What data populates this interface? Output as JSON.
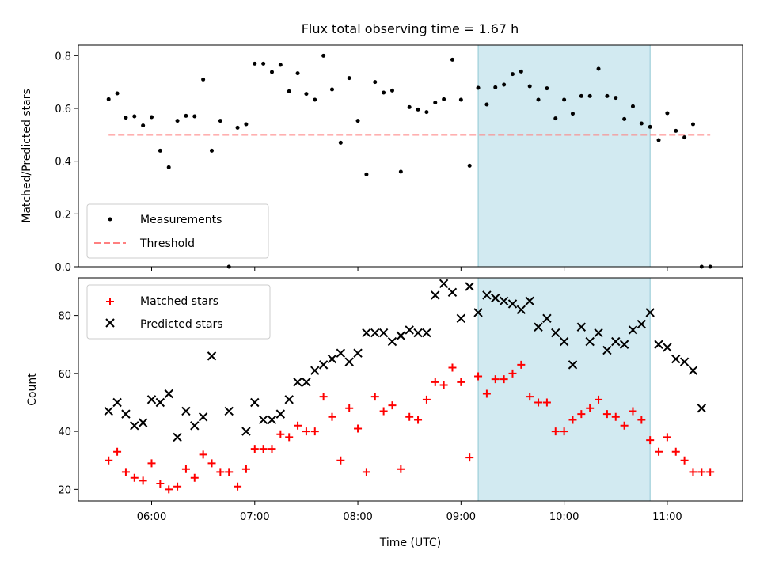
{
  "chart_data": {
    "type": "scatter",
    "title": "Flux total observing time = 1.67 h",
    "xlabel": "Time (UTC)",
    "xlim_hours": [
      5.29,
      11.73
    ],
    "x_ticks": [
      {
        "v": 6,
        "label": "06:00"
      },
      {
        "v": 7,
        "label": "07:00"
      },
      {
        "v": 8,
        "label": "08:00"
      },
      {
        "v": 9,
        "label": "09:00"
      },
      {
        "v": 10,
        "label": "10:00"
      },
      {
        "v": 11,
        "label": "11:00"
      }
    ],
    "highlight_span": {
      "start": "09:10",
      "end": "10:50",
      "color": "#add8e6"
    },
    "top": {
      "ylabel": "Matched/Predicted stars",
      "ylim": [
        0,
        0.84
      ],
      "y_ticks": [
        {
          "v": 0,
          "label": "0.0"
        },
        {
          "v": 0.2,
          "label": "0.2"
        },
        {
          "v": 0.4,
          "label": "0.4"
        },
        {
          "v": 0.6,
          "label": "0.6"
        },
        {
          "v": 0.8,
          "label": "0.8"
        }
      ],
      "threshold": {
        "value": 0.5,
        "x_start": "05:35",
        "x_end": "11:25",
        "color": "#ff8080"
      },
      "legend": {
        "measurements": "Measurements",
        "threshold": "Threshold",
        "location": "lower-left"
      },
      "series": [
        {
          "name": "Measurements",
          "color": "#000000",
          "points": [
            [
              "05:35",
              0.635
            ],
            [
              "05:40",
              0.657
            ],
            [
              "05:45",
              0.565
            ],
            [
              "05:50",
              0.57
            ],
            [
              "05:55",
              0.535
            ],
            [
              "06:00",
              0.567
            ],
            [
              "06:05",
              0.44
            ],
            [
              "06:10",
              0.377
            ],
            [
              "06:15",
              0.553
            ],
            [
              "06:20",
              0.572
            ],
            [
              "06:25",
              0.57
            ],
            [
              "06:30",
              0.71
            ],
            [
              "06:35",
              0.44
            ],
            [
              "06:40",
              0.553
            ],
            [
              "06:45",
              0.0
            ],
            [
              "06:50",
              0.527
            ],
            [
              "06:55",
              0.54
            ],
            [
              "07:00",
              0.77
            ],
            [
              "07:05",
              0.77
            ],
            [
              "07:10",
              0.738
            ],
            [
              "07:15",
              0.765
            ],
            [
              "07:20",
              0.665
            ],
            [
              "07:25",
              0.733
            ],
            [
              "07:30",
              0.655
            ],
            [
              "07:35",
              0.633
            ],
            [
              "07:40",
              0.8
            ],
            [
              "07:45",
              0.672
            ],
            [
              "07:50",
              0.47
            ],
            [
              "07:55",
              0.715
            ],
            [
              "08:00",
              0.553
            ],
            [
              "08:05",
              0.35
            ],
            [
              "08:10",
              0.7
            ],
            [
              "08:15",
              0.66
            ],
            [
              "08:20",
              0.668
            ],
            [
              "08:25",
              0.36
            ],
            [
              "08:30",
              0.605
            ],
            [
              "08:35",
              0.596
            ],
            [
              "08:40",
              0.586
            ],
            [
              "08:45",
              0.622
            ],
            [
              "08:50",
              0.635
            ],
            [
              "08:55",
              0.785
            ],
            [
              "09:00",
              0.633
            ],
            [
              "09:05",
              0.383
            ],
            [
              "09:10",
              0.678
            ],
            [
              "09:15",
              0.615
            ],
            [
              "09:20",
              0.68
            ],
            [
              "09:25",
              0.69
            ],
            [
              "09:30",
              0.73
            ],
            [
              "09:35",
              0.74
            ],
            [
              "09:40",
              0.684
            ],
            [
              "09:45",
              0.633
            ],
            [
              "09:50",
              0.676
            ],
            [
              "09:55",
              0.562
            ],
            [
              "10:00",
              0.633
            ],
            [
              "10:05",
              0.58
            ],
            [
              "10:10",
              0.647
            ],
            [
              "10:15",
              0.647
            ],
            [
              "10:20",
              0.75
            ],
            [
              "10:25",
              0.647
            ],
            [
              "10:30",
              0.64
            ],
            [
              "10:35",
              0.56
            ],
            [
              "10:40",
              0.608
            ],
            [
              "10:45",
              0.543
            ],
            [
              "10:50",
              0.53
            ],
            [
              "10:55",
              0.48
            ],
            [
              "11:00",
              0.582
            ],
            [
              "11:05",
              0.515
            ],
            [
              "11:10",
              0.49
            ],
            [
              "11:15",
              0.54
            ],
            [
              "11:20",
              0.0
            ],
            [
              "11:25",
              0.0
            ]
          ]
        }
      ]
    },
    "bottom": {
      "ylabel": "Count",
      "ylim": [
        16,
        93
      ],
      "y_ticks": [
        {
          "v": 20,
          "label": "20"
        },
        {
          "v": 40,
          "label": "40"
        },
        {
          "v": 60,
          "label": "60"
        },
        {
          "v": 80,
          "label": "80"
        }
      ],
      "legend": {
        "matched": "Matched stars",
        "predicted": "Predicted stars",
        "location": "upper-left"
      },
      "series": [
        {
          "name": "Matched stars",
          "marker": "+",
          "color": "#ff0000",
          "points": [
            [
              "05:35",
              30
            ],
            [
              "05:40",
              33
            ],
            [
              "05:45",
              26
            ],
            [
              "05:50",
              24
            ],
            [
              "05:55",
              23
            ],
            [
              "06:00",
              29
            ],
            [
              "06:05",
              22
            ],
            [
              "06:10",
              20
            ],
            [
              "06:15",
              21
            ],
            [
              "06:20",
              27
            ],
            [
              "06:25",
              24
            ],
            [
              "06:30",
              32
            ],
            [
              "06:35",
              29
            ],
            [
              "06:40",
              26
            ],
            [
              "06:45",
              26
            ],
            [
              "06:50",
              21
            ],
            [
              "06:55",
              27
            ],
            [
              "07:00",
              34
            ],
            [
              "07:05",
              34
            ],
            [
              "07:10",
              34
            ],
            [
              "07:15",
              39
            ],
            [
              "07:20",
              38
            ],
            [
              "07:25",
              42
            ],
            [
              "07:30",
              40
            ],
            [
              "07:35",
              40
            ],
            [
              "07:40",
              52
            ],
            [
              "07:45",
              45
            ],
            [
              "07:50",
              30
            ],
            [
              "07:55",
              48
            ],
            [
              "08:00",
              41
            ],
            [
              "08:05",
              26
            ],
            [
              "08:10",
              52
            ],
            [
              "08:15",
              47
            ],
            [
              "08:20",
              49
            ],
            [
              "08:25",
              27
            ],
            [
              "08:30",
              45
            ],
            [
              "08:35",
              44
            ],
            [
              "08:40",
              51
            ],
            [
              "08:45",
              57
            ],
            [
              "08:50",
              56
            ],
            [
              "08:55",
              62
            ],
            [
              "09:00",
              57
            ],
            [
              "09:05",
              31
            ],
            [
              "09:10",
              59
            ],
            [
              "09:15",
              53
            ],
            [
              "09:20",
              58
            ],
            [
              "09:25",
              58
            ],
            [
              "09:30",
              60
            ],
            [
              "09:35",
              63
            ],
            [
              "09:40",
              52
            ],
            [
              "09:45",
              50
            ],
            [
              "09:50",
              50
            ],
            [
              "09:55",
              40
            ],
            [
              "10:00",
              40
            ],
            [
              "10:05",
              44
            ],
            [
              "10:10",
              46
            ],
            [
              "10:15",
              48
            ],
            [
              "10:20",
              51
            ],
            [
              "10:25",
              46
            ],
            [
              "10:30",
              45
            ],
            [
              "10:35",
              42
            ],
            [
              "10:40",
              47
            ],
            [
              "10:45",
              44
            ],
            [
              "10:50",
              37
            ],
            [
              "10:55",
              33
            ],
            [
              "11:00",
              38
            ],
            [
              "11:05",
              33
            ],
            [
              "11:10",
              30
            ],
            [
              "11:15",
              26
            ],
            [
              "11:20",
              26
            ],
            [
              "11:25",
              26
            ]
          ]
        },
        {
          "name": "Predicted stars",
          "marker": "x",
          "color": "#000000",
          "points": [
            [
              "05:35",
              47
            ],
            [
              "05:40",
              50
            ],
            [
              "05:45",
              46
            ],
            [
              "05:50",
              42
            ],
            [
              "05:55",
              43
            ],
            [
              "06:00",
              51
            ],
            [
              "06:05",
              50
            ],
            [
              "06:10",
              53
            ],
            [
              "06:15",
              38
            ],
            [
              "06:20",
              47
            ],
            [
              "06:25",
              42
            ],
            [
              "06:30",
              45
            ],
            [
              "06:35",
              66
            ],
            [
              "06:45",
              47
            ],
            [
              "06:55",
              40
            ],
            [
              "07:00",
              50
            ],
            [
              "07:05",
              44
            ],
            [
              "07:10",
              44
            ],
            [
              "07:15",
              46
            ],
            [
              "07:20",
              51
            ],
            [
              "07:25",
              57
            ],
            [
              "07:30",
              57
            ],
            [
              "07:35",
              61
            ],
            [
              "07:40",
              63
            ],
            [
              "07:45",
              65
            ],
            [
              "07:50",
              67
            ],
            [
              "07:55",
              64
            ],
            [
              "08:00",
              67
            ],
            [
              "08:05",
              74
            ],
            [
              "08:10",
              74
            ],
            [
              "08:15",
              74
            ],
            [
              "08:20",
              71
            ],
            [
              "08:25",
              73
            ],
            [
              "08:30",
              75
            ],
            [
              "08:35",
              74
            ],
            [
              "08:40",
              74
            ],
            [
              "08:45",
              87
            ],
            [
              "08:50",
              91
            ],
            [
              "08:55",
              88
            ],
            [
              "09:00",
              79
            ],
            [
              "09:05",
              90
            ],
            [
              "09:10",
              81
            ],
            [
              "09:15",
              87
            ],
            [
              "09:20",
              86
            ],
            [
              "09:25",
              85
            ],
            [
              "09:30",
              84
            ],
            [
              "09:35",
              82
            ],
            [
              "09:40",
              85
            ],
            [
              "09:45",
              76
            ],
            [
              "09:50",
              79
            ],
            [
              "09:55",
              74
            ],
            [
              "10:00",
              71
            ],
            [
              "10:05",
              63
            ],
            [
              "10:10",
              76
            ],
            [
              "10:15",
              71
            ],
            [
              "10:20",
              74
            ],
            [
              "10:25",
              68
            ],
            [
              "10:30",
              71
            ],
            [
              "10:35",
              70
            ],
            [
              "10:40",
              75
            ],
            [
              "10:45",
              77
            ],
            [
              "10:50",
              81
            ],
            [
              "10:55",
              70
            ],
            [
              "11:00",
              69
            ],
            [
              "11:05",
              65
            ],
            [
              "11:10",
              64
            ],
            [
              "11:15",
              61
            ],
            [
              "11:20",
              48
            ]
          ]
        }
      ]
    }
  }
}
